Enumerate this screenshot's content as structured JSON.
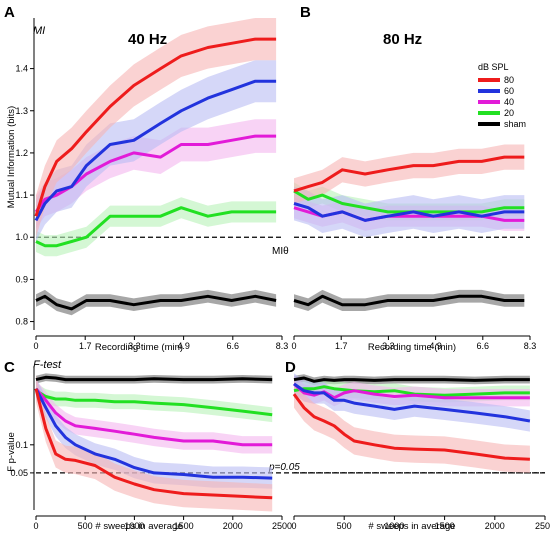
{
  "chart_data": [
    {
      "panel": "A",
      "type": "line",
      "title": "40 Hz",
      "tag": "MI",
      "xlabel": "Recording time (min)",
      "ylabel": "Mutual Information (bits)",
      "xlim": [
        0,
        8.3
      ],
      "ylim": [
        0.78,
        1.52
      ],
      "xticks": [
        "0",
        "1.7",
        "3.3",
        "4.9",
        "6.6",
        "8.3"
      ],
      "yticks": [
        "0.8",
        "0.9",
        "1.0",
        "1.1",
        "1.2",
        "1.3",
        "1.4"
      ],
      "reference_line": {
        "y": 1.0,
        "label": "MIθ"
      },
      "series": [
        {
          "name": "80",
          "x": [
            0,
            0.3,
            0.7,
            1.2,
            1.7,
            2.5,
            3.3,
            4.2,
            4.9,
            5.8,
            6.6,
            7.4,
            8.1
          ],
          "y": [
            1.05,
            1.12,
            1.18,
            1.21,
            1.25,
            1.31,
            1.36,
            1.4,
            1.43,
            1.45,
            1.46,
            1.47,
            1.47
          ],
          "band": 0.05
        },
        {
          "name": "60",
          "x": [
            0,
            0.3,
            0.7,
            1.2,
            1.7,
            2.5,
            3.3,
            4.2,
            4.9,
            5.8,
            6.6,
            7.4,
            8.1
          ],
          "y": [
            1.04,
            1.08,
            1.11,
            1.12,
            1.17,
            1.22,
            1.23,
            1.27,
            1.3,
            1.33,
            1.35,
            1.37,
            1.37
          ],
          "band": 0.05
        },
        {
          "name": "40",
          "x": [
            0,
            0.3,
            0.7,
            1.2,
            1.7,
            2.5,
            3.3,
            4.2,
            4.9,
            5.8,
            6.6,
            7.4,
            8.1
          ],
          "y": [
            1.06,
            1.09,
            1.1,
            1.12,
            1.15,
            1.18,
            1.2,
            1.19,
            1.22,
            1.22,
            1.23,
            1.24,
            1.24
          ],
          "band": 0.04
        },
        {
          "name": "20",
          "x": [
            0,
            0.3,
            0.7,
            1.2,
            1.7,
            2.5,
            3.3,
            4.2,
            4.9,
            5.8,
            6.6,
            7.4,
            8.1
          ],
          "y": [
            0.99,
            0.98,
            0.98,
            0.99,
            1.0,
            1.05,
            1.05,
            1.05,
            1.07,
            1.05,
            1.06,
            1.06,
            1.06
          ],
          "band": 0.025
        },
        {
          "name": "sham",
          "x": [
            0,
            0.3,
            0.7,
            1.2,
            1.7,
            2.5,
            3.3,
            4.2,
            4.9,
            5.8,
            6.6,
            7.4,
            8.1
          ],
          "y": [
            0.85,
            0.86,
            0.84,
            0.83,
            0.85,
            0.85,
            0.84,
            0.85,
            0.85,
            0.86,
            0.85,
            0.86,
            0.85
          ],
          "band": 0.015
        }
      ]
    },
    {
      "panel": "B",
      "type": "line",
      "title": "80 Hz",
      "xlabel": "Recording time (min)",
      "ylabel": "",
      "xlim": [
        0,
        8.3
      ],
      "ylim": [
        0.78,
        1.52
      ],
      "xticks": [
        "0",
        "1.7",
        "3.3",
        "4.9",
        "6.6",
        "8.3"
      ],
      "reference_line": {
        "y": 1.0
      },
      "series": [
        {
          "name": "80",
          "x": [
            0,
            0.5,
            1.0,
            1.7,
            2.5,
            3.3,
            4.2,
            4.9,
            5.8,
            6.6,
            7.4,
            8.1
          ],
          "y": [
            1.11,
            1.12,
            1.13,
            1.16,
            1.15,
            1.16,
            1.17,
            1.17,
            1.18,
            1.18,
            1.19,
            1.19
          ],
          "band": 0.03
        },
        {
          "name": "60",
          "x": [
            0,
            0.5,
            1.0,
            1.7,
            2.5,
            3.3,
            4.2,
            4.9,
            5.8,
            6.6,
            7.4,
            8.1
          ],
          "y": [
            1.08,
            1.07,
            1.05,
            1.06,
            1.04,
            1.05,
            1.06,
            1.05,
            1.06,
            1.05,
            1.06,
            1.06
          ],
          "band": 0.04
        },
        {
          "name": "40",
          "x": [
            0,
            0.5,
            1.0,
            1.7,
            2.5,
            3.3,
            4.2,
            4.9,
            5.8,
            6.6,
            7.4,
            8.1
          ],
          "y": [
            1.07,
            1.06,
            1.05,
            1.06,
            1.04,
            1.05,
            1.05,
            1.05,
            1.05,
            1.05,
            1.04,
            1.04
          ],
          "band": 0.025
        },
        {
          "name": "20",
          "x": [
            0,
            0.5,
            1.0,
            1.7,
            2.5,
            3.3,
            4.2,
            4.9,
            5.8,
            6.6,
            7.4,
            8.1
          ],
          "y": [
            1.11,
            1.09,
            1.1,
            1.08,
            1.07,
            1.06,
            1.06,
            1.06,
            1.06,
            1.06,
            1.07,
            1.07
          ],
          "band": 0.02
        },
        {
          "name": "sham",
          "x": [
            0,
            0.5,
            1.0,
            1.7,
            2.5,
            3.3,
            4.2,
            4.9,
            5.8,
            6.6,
            7.4,
            8.1
          ],
          "y": [
            0.85,
            0.84,
            0.86,
            0.84,
            0.84,
            0.85,
            0.85,
            0.85,
            0.86,
            0.86,
            0.85,
            0.85
          ],
          "band": 0.015
        }
      ]
    },
    {
      "panel": "C",
      "type": "line",
      "tag": "F-test",
      "xlabel": "# sweeps in average",
      "ylabel": "F p-value",
      "xlim": [
        0,
        2500
      ],
      "ylim_log": [
        0.02,
        0.7
      ],
      "xticks": [
        "0",
        "500",
        "1000",
        "1500",
        "2000",
        "2500"
      ],
      "yticks": [
        "0.05",
        "0.1"
      ],
      "reference_line": {
        "y": 0.05,
        "label": "p=0.05"
      },
      "series": [
        {
          "name": "80",
          "x": [
            0,
            100,
            200,
            300,
            400,
            600,
            800,
            1000,
            1200,
            1500,
            1800,
            2100,
            2400
          ],
          "y": [
            0.4,
            0.15,
            0.08,
            0.07,
            0.068,
            0.06,
            0.045,
            0.038,
            0.033,
            0.03,
            0.029,
            0.028,
            0.027
          ],
          "band": 0.2
        },
        {
          "name": "60",
          "x": [
            0,
            100,
            200,
            300,
            400,
            600,
            800,
            1000,
            1200,
            1500,
            1800,
            2100,
            2400
          ],
          "y": [
            0.4,
            0.25,
            0.16,
            0.12,
            0.1,
            0.08,
            0.07,
            0.057,
            0.05,
            0.048,
            0.045,
            0.045,
            0.044
          ],
          "band": 0.15
        },
        {
          "name": "40",
          "x": [
            0,
            100,
            200,
            300,
            400,
            600,
            800,
            1000,
            1200,
            1500,
            1800,
            2100,
            2400
          ],
          "y": [
            0.4,
            0.3,
            0.22,
            0.18,
            0.16,
            0.15,
            0.14,
            0.13,
            0.12,
            0.11,
            0.11,
            0.1,
            0.1
          ],
          "band": 0.12
        },
        {
          "name": "20",
          "x": [
            0,
            100,
            200,
            300,
            400,
            600,
            800,
            1000,
            1200,
            1500,
            1800,
            2100,
            2400
          ],
          "y": [
            0.38,
            0.33,
            0.31,
            0.31,
            0.3,
            0.3,
            0.29,
            0.29,
            0.28,
            0.27,
            0.25,
            0.23,
            0.21
          ],
          "band": 0.1
        },
        {
          "name": "sham",
          "x": [
            0,
            100,
            200,
            300,
            400,
            600,
            800,
            1000,
            1200,
            1500,
            1800,
            2100,
            2400
          ],
          "y": [
            0.5,
            0.53,
            0.52,
            0.5,
            0.5,
            0.5,
            0.5,
            0.5,
            0.51,
            0.5,
            0.5,
            0.51,
            0.5
          ],
          "band": 0.05
        }
      ]
    },
    {
      "panel": "D",
      "type": "line",
      "xlabel": "# sweeps in average",
      "ylabel": "",
      "xlim": [
        0,
        2500
      ],
      "ylim_log": [
        0.02,
        0.7
      ],
      "xticks": [
        "0",
        "500",
        "1000",
        "1500",
        "2000",
        "2500"
      ],
      "reference_line": {
        "y": 0.05
      },
      "series": [
        {
          "name": "80",
          "x": [
            0,
            100,
            200,
            300,
            400,
            500,
            600,
            800,
            1000,
            1200,
            1500,
            1800,
            2100,
            2350
          ],
          "y": [
            0.35,
            0.25,
            0.2,
            0.18,
            0.16,
            0.13,
            0.11,
            0.1,
            0.092,
            0.09,
            0.088,
            0.08,
            0.072,
            0.07
          ],
          "band": 0.2
        },
        {
          "name": "60",
          "x": [
            0,
            100,
            200,
            300,
            400,
            500,
            600,
            800,
            1000,
            1200,
            1500,
            1800,
            2100,
            2350
          ],
          "y": [
            0.45,
            0.38,
            0.36,
            0.36,
            0.3,
            0.3,
            0.28,
            0.26,
            0.24,
            0.26,
            0.24,
            0.22,
            0.2,
            0.18
          ],
          "band": 0.15
        },
        {
          "name": "40",
          "x": [
            0,
            100,
            200,
            300,
            400,
            500,
            600,
            800,
            1000,
            1200,
            1500,
            1800,
            2100,
            2350
          ],
          "y": [
            0.45,
            0.36,
            0.34,
            0.37,
            0.32,
            0.36,
            0.38,
            0.35,
            0.33,
            0.34,
            0.32,
            0.32,
            0.32,
            0.32
          ],
          "band": 0.12
        },
        {
          "name": "20",
          "x": [
            0,
            100,
            200,
            300,
            400,
            500,
            600,
            800,
            1000,
            1200,
            1500,
            1800,
            2100,
            2350
          ],
          "y": [
            0.38,
            0.4,
            0.4,
            0.42,
            0.4,
            0.39,
            0.38,
            0.37,
            0.38,
            0.35,
            0.34,
            0.35,
            0.36,
            0.36
          ],
          "band": 0.1
        },
        {
          "name": "sham",
          "x": [
            0,
            100,
            200,
            300,
            400,
            500,
            600,
            800,
            1000,
            1200,
            1500,
            1800,
            2100,
            2350
          ],
          "y": [
            0.5,
            0.52,
            0.48,
            0.5,
            0.49,
            0.5,
            0.5,
            0.49,
            0.5,
            0.5,
            0.5,
            0.49,
            0.5,
            0.5
          ],
          "band": 0.05
        }
      ]
    }
  ],
  "legend": {
    "title": "dB SPL",
    "entries": [
      "80",
      "60",
      "40",
      "20",
      "sham"
    ],
    "placement": "right of panel B"
  },
  "colors": {
    "80": "#ee1c1c",
    "60": "#2233dd",
    "40": "#e21bd8",
    "20": "#22e022",
    "sham": "#000000",
    "band_80": "#f6b4b4",
    "band_60": "#b9bcf3",
    "band_40": "#f3b6ef",
    "band_20": "#b8f1b8",
    "band_sham": "#8a8a8a"
  }
}
